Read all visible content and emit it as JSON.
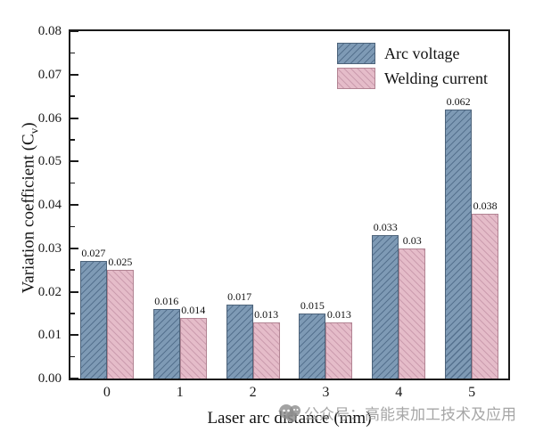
{
  "figure": {
    "watermark": {
      "icon": "wechat-official-account-icon",
      "text": "公众号：高能束加工技术及应用"
    }
  },
  "chart_data": {
    "type": "bar",
    "title": "",
    "xlabel": "Laser arc distance (mm)",
    "ylabel": "Variation coefficient (Cv)",
    "ylabel_parts": {
      "main": "Variation coefficient (C",
      "sub": "v",
      "end": ")"
    },
    "categories": [
      "0",
      "1",
      "2",
      "3",
      "4",
      "5"
    ],
    "series": [
      {
        "name": "Arc voltage",
        "values": [
          0.027,
          0.016,
          0.017,
          0.015,
          0.033,
          0.062
        ],
        "labels": [
          "0.027",
          "0.016",
          "0.017",
          "0.015",
          "0.033",
          "0.062"
        ],
        "fill": "#7e9ab5",
        "hatch": "/",
        "hatch_color": "#55718e",
        "border_color": "#4d637a"
      },
      {
        "name": "Welding current",
        "values": [
          0.025,
          0.014,
          0.013,
          0.013,
          0.03,
          0.038
        ],
        "labels": [
          "0.025",
          "0.014",
          "0.013",
          "0.013",
          "0.03",
          "0.038"
        ],
        "fill": "#e5bcc9",
        "hatch": "\\",
        "hatch_color": "#cb9cae",
        "border_color": "#b28493"
      }
    ],
    "ylim": [
      0,
      0.08
    ],
    "ytick_step": 0.01,
    "ytick_minor_step": 0.005,
    "ytick_decimals": 2,
    "legend_position": "top-right-inside",
    "grid": false
  }
}
